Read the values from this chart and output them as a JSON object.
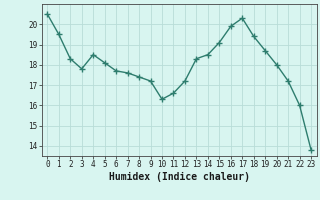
{
  "x": [
    0,
    1,
    2,
    3,
    4,
    5,
    6,
    7,
    8,
    9,
    10,
    11,
    12,
    13,
    14,
    15,
    16,
    17,
    18,
    19,
    20,
    21,
    22,
    23
  ],
  "y": [
    20.5,
    19.5,
    18.3,
    17.8,
    18.5,
    18.1,
    17.7,
    17.6,
    17.4,
    17.2,
    16.3,
    16.6,
    17.2,
    18.3,
    18.5,
    19.1,
    19.9,
    20.3,
    19.4,
    18.7,
    18.0,
    17.2,
    16.0,
    13.8
  ],
  "line_color": "#2e7d6e",
  "marker": "+",
  "marker_size": 4,
  "bg_color": "#d8f5f0",
  "grid_color": "#b8ddd8",
  "xlabel": "Humidex (Indice chaleur)",
  "ylim": [
    13.5,
    21.0
  ],
  "xlim": [
    -0.5,
    23.5
  ],
  "yticks": [
    14,
    15,
    16,
    17,
    18,
    19,
    20
  ],
  "xticks": [
    0,
    1,
    2,
    3,
    4,
    5,
    6,
    7,
    8,
    9,
    10,
    11,
    12,
    13,
    14,
    15,
    16,
    17,
    18,
    19,
    20,
    21,
    22,
    23
  ],
  "tick_fontsize": 5.5,
  "xlabel_fontsize": 7
}
